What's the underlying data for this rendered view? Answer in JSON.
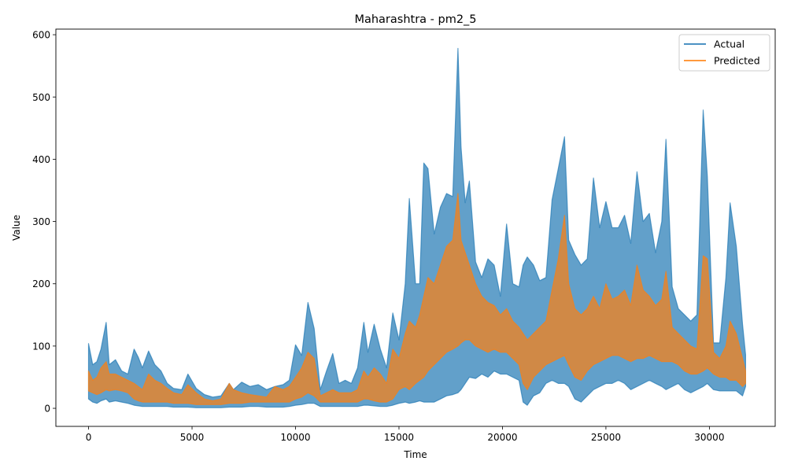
{
  "chart_data": {
    "type": "line",
    "title": "Maharashtra - pm2_5",
    "xlabel": "Time",
    "ylabel": "Value",
    "xlim": [
      -1580,
      33180
    ],
    "ylim": [
      -29,
      609
    ],
    "x_ticks": [
      0,
      5000,
      10000,
      15000,
      20000,
      25000,
      30000
    ],
    "y_ticks": [
      0,
      100,
      200,
      300,
      400,
      500,
      600
    ],
    "grid": false,
    "legend": "top-right",
    "series": [
      {
        "name": "Actual",
        "color": "#1f77b4",
        "opacity": 0.7,
        "x": [
          0,
          200,
          400,
          600,
          850,
          1000,
          1300,
          1600,
          1900,
          2200,
          2400,
          2600,
          2900,
          3200,
          3500,
          3800,
          4100,
          4500,
          4800,
          5200,
          5600,
          6000,
          6400,
          6800,
          7000,
          7400,
          7800,
          8200,
          8600,
          9000,
          9400,
          9700,
          10000,
          10300,
          10600,
          10900,
          11200,
          11500,
          11800,
          12100,
          12400,
          12700,
          13000,
          13300,
          13500,
          13800,
          14100,
          14400,
          14700,
          15000,
          15300,
          15500,
          15800,
          16000,
          16200,
          16400,
          16700,
          17000,
          17300,
          17600,
          17850,
          18000,
          18200,
          18400,
          18700,
          19000,
          19300,
          19600,
          19900,
          20200,
          20500,
          20800,
          21000,
          21200,
          21500,
          21800,
          22100,
          22400,
          22700,
          23000,
          23200,
          23500,
          23800,
          24100,
          24400,
          24700,
          25000,
          25300,
          25600,
          25900,
          26200,
          26500,
          26800,
          27100,
          27400,
          27700,
          27900,
          28200,
          28500,
          28800,
          29100,
          29400,
          29700,
          29900,
          30200,
          30500,
          30800,
          31000,
          31300,
          31600,
          31750
        ],
        "upper": [
          104,
          70,
          75,
          95,
          138,
          70,
          78,
          60,
          55,
          95,
          82,
          65,
          92,
          70,
          60,
          40,
          32,
          30,
          55,
          32,
          22,
          18,
          20,
          40,
          30,
          42,
          35,
          38,
          30,
          35,
          38,
          45,
          102,
          85,
          170,
          128,
          30,
          60,
          88,
          40,
          45,
          40,
          65,
          138,
          90,
          135,
          95,
          65,
          153,
          110,
          200,
          337,
          200,
          200,
          394,
          385,
          280,
          323,
          345,
          340,
          578,
          420,
          330,
          365,
          235,
          210,
          240,
          230,
          180,
          296,
          200,
          195,
          230,
          243,
          230,
          205,
          210,
          335,
          385,
          436,
          270,
          247,
          230,
          240,
          370,
          290,
          332,
          290,
          290,
          310,
          265,
          380,
          300,
          313,
          250,
          300,
          432,
          195,
          160,
          150,
          140,
          150,
          479,
          372,
          105,
          105,
          210,
          330,
          260,
          135,
          86
        ],
        "lower": [
          15,
          10,
          8,
          12,
          15,
          10,
          12,
          10,
          8,
          5,
          4,
          3,
          3,
          3,
          3,
          3,
          2,
          2,
          2,
          1,
          1,
          1,
          1,
          2,
          2,
          2,
          3,
          3,
          2,
          2,
          2,
          3,
          5,
          6,
          8,
          8,
          3,
          3,
          3,
          3,
          3,
          3,
          3,
          5,
          5,
          4,
          3,
          3,
          5,
          8,
          10,
          8,
          10,
          12,
          10,
          10,
          10,
          15,
          20,
          22,
          25,
          30,
          40,
          50,
          48,
          55,
          50,
          60,
          55,
          55,
          50,
          45,
          10,
          5,
          20,
          25,
          40,
          45,
          40,
          40,
          35,
          15,
          10,
          20,
          30,
          35,
          40,
          40,
          45,
          40,
          30,
          35,
          40,
          45,
          40,
          35,
          30,
          35,
          40,
          30,
          25,
          30,
          35,
          40,
          30,
          28,
          28,
          28,
          28,
          20,
          35
        ]
      },
      {
        "name": "Predicted",
        "color": "#ff7f0e",
        "opacity": 0.7,
        "x": [
          0,
          200,
          400,
          600,
          850,
          1000,
          1300,
          1600,
          1900,
          2200,
          2400,
          2600,
          2900,
          3200,
          3500,
          3800,
          4100,
          4500,
          4800,
          5200,
          5600,
          6000,
          6400,
          6800,
          7000,
          7400,
          7800,
          8200,
          8600,
          9000,
          9400,
          9700,
          10000,
          10300,
          10600,
          10900,
          11200,
          11500,
          11800,
          12100,
          12400,
          12700,
          13000,
          13300,
          13500,
          13800,
          14100,
          14400,
          14700,
          15000,
          15300,
          15500,
          15800,
          16000,
          16200,
          16400,
          16700,
          17000,
          17300,
          17600,
          17850,
          18000,
          18200,
          18400,
          18700,
          19000,
          19300,
          19600,
          19900,
          20200,
          20500,
          20800,
          21000,
          21200,
          21500,
          21800,
          22100,
          22400,
          22700,
          23000,
          23200,
          23500,
          23800,
          24100,
          24400,
          24700,
          25000,
          25300,
          25600,
          25900,
          26200,
          26500,
          26800,
          27100,
          27400,
          27700,
          27900,
          28200,
          28500,
          28800,
          29100,
          29400,
          29700,
          29900,
          30200,
          30500,
          30800,
          31000,
          31300,
          31600,
          31750
        ],
        "upper": [
          60,
          45,
          50,
          65,
          75,
          55,
          55,
          50,
          45,
          40,
          35,
          30,
          55,
          45,
          40,
          32,
          25,
          22,
          38,
          25,
          15,
          12,
          15,
          40,
          30,
          25,
          22,
          20,
          18,
          35,
          30,
          35,
          50,
          65,
          90,
          80,
          20,
          25,
          30,
          25,
          25,
          25,
          30,
          60,
          50,
          65,
          55,
          40,
          95,
          80,
          120,
          140,
          130,
          150,
          180,
          210,
          200,
          230,
          260,
          270,
          345,
          270,
          250,
          230,
          200,
          180,
          170,
          165,
          150,
          160,
          140,
          130,
          120,
          110,
          120,
          130,
          140,
          190,
          240,
          310,
          200,
          160,
          150,
          160,
          180,
          160,
          200,
          175,
          180,
          190,
          165,
          230,
          190,
          180,
          165,
          175,
          220,
          130,
          120,
          110,
          100,
          95,
          245,
          240,
          90,
          80,
          100,
          140,
          120,
          80,
          60
        ],
        "lower": [
          28,
          25,
          22,
          25,
          30,
          28,
          30,
          28,
          25,
          15,
          12,
          10,
          10,
          10,
          10,
          10,
          8,
          8,
          8,
          6,
          6,
          6,
          6,
          8,
          8,
          8,
          10,
          10,
          10,
          10,
          10,
          10,
          15,
          18,
          25,
          20,
          10,
          10,
          10,
          10,
          10,
          10,
          10,
          15,
          15,
          12,
          10,
          10,
          15,
          30,
          35,
          30,
          40,
          45,
          50,
          60,
          70,
          80,
          90,
          95,
          100,
          105,
          110,
          110,
          100,
          95,
          90,
          95,
          90,
          90,
          80,
          70,
          40,
          30,
          50,
          60,
          70,
          75,
          80,
          85,
          70,
          50,
          45,
          60,
          70,
          75,
          80,
          85,
          85,
          80,
          75,
          80,
          80,
          85,
          80,
          75,
          75,
          75,
          70,
          60,
          55,
          55,
          60,
          65,
          55,
          50,
          50,
          45,
          45,
          35,
          40
        ]
      }
    ]
  }
}
